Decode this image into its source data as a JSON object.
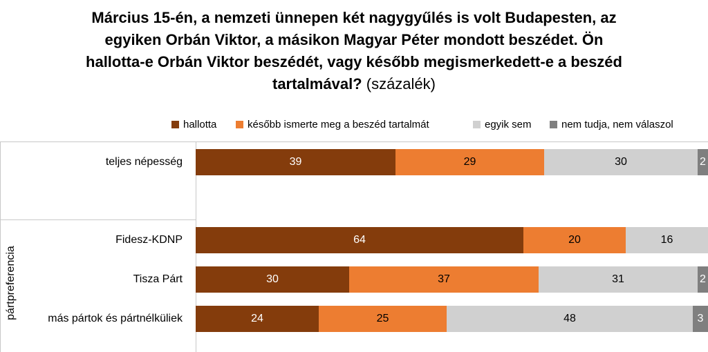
{
  "title": {
    "line1": "Március 15-én, a nemzeti ünnepen két nagygyűlés is volt Budapesten, az",
    "line2": "egyiken Orbán Viktor, a másikon Magyar Péter mondott beszédet. Ön",
    "line3": "hallotta-e Orbán Viktor beszédét, vagy később megismerkedett-e a beszéd",
    "line4_bold": "tartalmával?",
    "line4_normal": " (százalék)"
  },
  "chart_data": {
    "type": "bar",
    "orientation": "horizontal",
    "stacked": true,
    "title": "Március 15-én, a nemzeti ünnepen két nagygyűlés is volt Budapesten, az egyiken Orbán Viktor, a másikon Magyar Péter mondott beszédet. Ön hallotta-e Orbán Viktor beszédét, vagy később megismerkedett-e a beszéd tartalmával? (százalék)",
    "group_label": "pártpreferencia",
    "categories": [
      "teljes népesség",
      "Fidesz-KDNP",
      "Tisza Párt",
      "más pártok és pártnélküliek"
    ],
    "series": [
      {
        "name": "hallotta",
        "color": "#843C0C",
        "text_color": "#FFFFFF",
        "values": [
          39,
          64,
          30,
          24
        ]
      },
      {
        "name": "később ismerte meg a beszéd tartalmát",
        "color": "#ED7D31",
        "text_color": "#000000",
        "values": [
          29,
          20,
          37,
          25
        ]
      },
      {
        "name": "egyik sem",
        "color": "#D0D0D0",
        "text_color": "#000000",
        "values": [
          30,
          16,
          31,
          48
        ]
      },
      {
        "name": "nem tudja, nem válaszol",
        "color": "#7F7F7F",
        "text_color": "#FFFFFF",
        "values": [
          2,
          0,
          2,
          3
        ]
      }
    ],
    "xlim": [
      0,
      100
    ],
    "legend_position": "top"
  }
}
